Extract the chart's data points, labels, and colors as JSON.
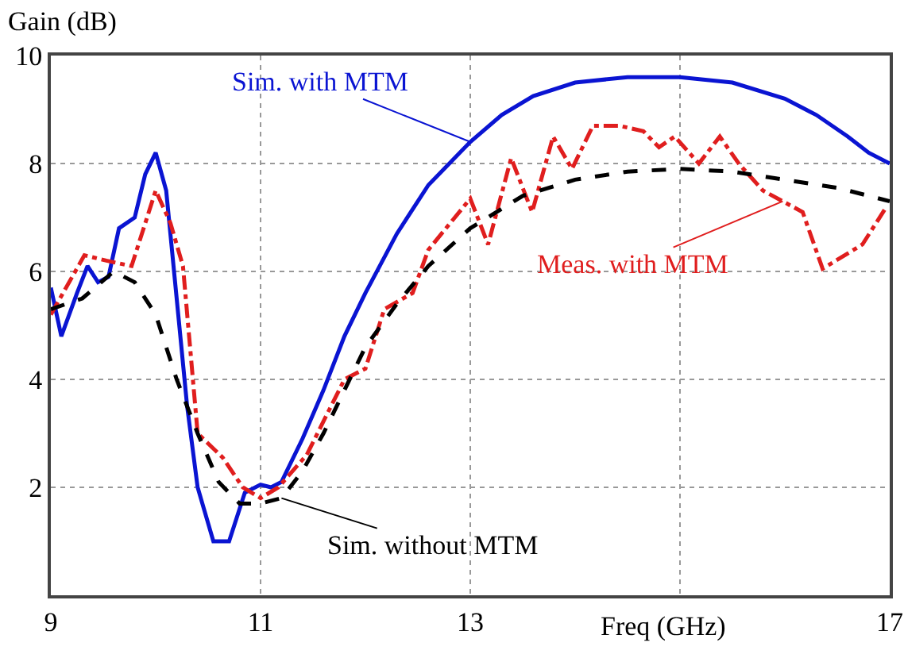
{
  "chart_data": {
    "type": "line",
    "xlabel": "Freq (GHz)",
    "ylabel": "Gain (dB)",
    "xlim": [
      9,
      17
    ],
    "xticks": [
      9,
      11,
      13,
      {
        "value": 15,
        "label": null
      },
      17
    ],
    "ylim": [
      0,
      10
    ],
    "yticks": [
      2,
      4,
      6,
      8,
      10
    ],
    "grid": true,
    "legend": "center",
    "marker": "none",
    "series": [
      {
        "name": "Sim. with MTM",
        "color": "#0a14d2",
        "line_style": "solid",
        "x": [
          9,
          9.1,
          9.25,
          9.35,
          9.45,
          9.55,
          9.65,
          9.8,
          9.9,
          10,
          10.1,
          10.2,
          10.3,
          10.4,
          10.55,
          10.7,
          10.85,
          11,
          11.1,
          11.2,
          11.4,
          11.6,
          11.8,
          12,
          12.3,
          12.6,
          13,
          13.3,
          13.6,
          14,
          14.5,
          15,
          15.5,
          16,
          16.3,
          16.6,
          16.8,
          17
        ],
        "values": [
          5.7,
          4.8,
          5.6,
          6.1,
          5.8,
          5.9,
          6.8,
          7,
          7.8,
          8.2,
          7.5,
          5.5,
          3.5,
          2,
          1,
          1,
          1.9,
          2.05,
          2,
          2.1,
          2.9,
          3.8,
          4.8,
          5.6,
          6.7,
          7.6,
          8.4,
          8.9,
          9.25,
          9.5,
          9.6,
          9.6,
          9.5,
          9.2,
          8.9,
          8.5,
          8.2,
          8
        ]
      },
      {
        "name": "Meas. with MTM",
        "color": "#e01e1e",
        "line_style": "dashdot",
        "x": [
          9,
          9.32,
          9.53,
          9.77,
          10,
          10.14,
          10.26,
          10.4,
          10.64,
          10.83,
          11,
          11.17,
          11.44,
          11.8,
          12,
          12.18,
          12.45,
          12.6,
          13,
          13.17,
          13.39,
          13.59,
          13.79,
          13.97,
          14.17,
          14.42,
          14.65,
          14.8,
          14.95,
          15.18,
          15.38,
          15.56,
          15.79,
          15.98,
          16.17,
          16.36,
          16.74,
          16.97
        ],
        "values": [
          5.2,
          6.3,
          6.2,
          6.1,
          7.5,
          6.9,
          6.1,
          3,
          2.55,
          2,
          1.8,
          2,
          2.6,
          4,
          4.2,
          5.3,
          5.6,
          6.4,
          7.35,
          6.5,
          8.1,
          7.1,
          8.5,
          7.9,
          8.7,
          8.7,
          8.6,
          8.3,
          8.5,
          8,
          8.5,
          8,
          7.5,
          7.3,
          7.1,
          6.05,
          6.5,
          7.2
        ]
      },
      {
        "name": "Sim. without MTM",
        "color": "#000000",
        "line_style": "dashed",
        "x": [
          9,
          9.3,
          9.6,
          9.8,
          10,
          10.2,
          10.4,
          10.6,
          10.8,
          11,
          11.2,
          11.4,
          11.6,
          11.8,
          12,
          12.3,
          12.6,
          13,
          13.5,
          14,
          14.5,
          15,
          15.5,
          16,
          16.5,
          17
        ],
        "values": [
          5.3,
          5.5,
          6,
          5.8,
          5.2,
          4,
          3,
          2.1,
          1.7,
          1.7,
          1.8,
          2.3,
          3,
          3.8,
          4.6,
          5.4,
          6.1,
          6.8,
          7.4,
          7.7,
          7.85,
          7.9,
          7.85,
          7.7,
          7.55,
          7.3
        ]
      }
    ]
  }
}
